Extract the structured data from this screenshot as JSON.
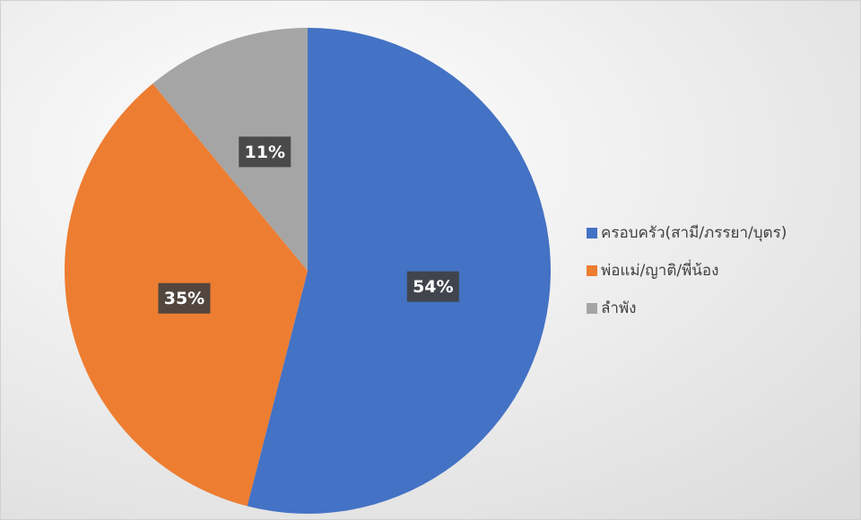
{
  "chart_data": {
    "type": "pie",
    "categories": [
      "ครอบครัว(สามี/ภรรยา/บุตร)",
      "พ่อแม่/ญาติ/พี่น้อง",
      "ลำพัง"
    ],
    "values": [
      54,
      35,
      11
    ],
    "value_labels": [
      "54%",
      "35%",
      "11%"
    ],
    "colors": [
      "#4472c4",
      "#ed7d31",
      "#a5a5a5"
    ],
    "legend": "right"
  }
}
